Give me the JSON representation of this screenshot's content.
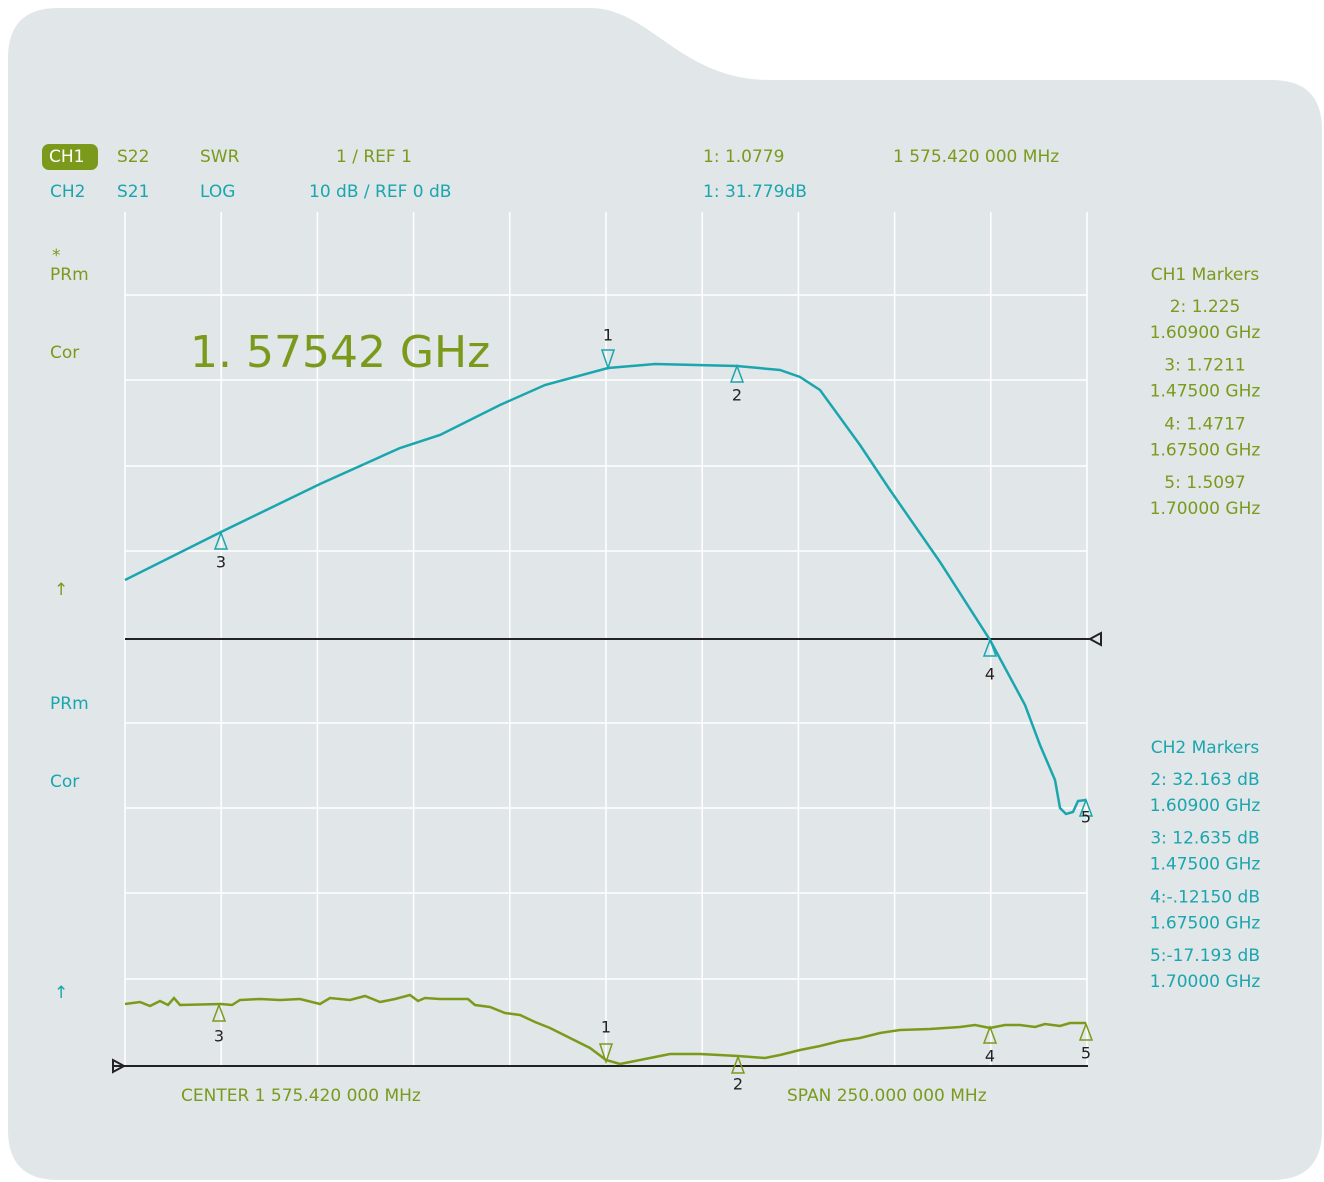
{
  "header": {
    "ch1": {
      "channel": "CH1",
      "param": "S22",
      "format": "SWR",
      "scale": "1   /  REF 1",
      "marker": "1: 1.0779",
      "frequency": "1 575.420 000 MHz"
    },
    "ch2": {
      "channel": "CH2",
      "param": "S21",
      "format": "LOG",
      "scale": "10  dB / REF  0  dB",
      "marker": "1: 31.779dB"
    }
  },
  "left_labels": {
    "ch1": {
      "star": "*",
      "prm": "PRm",
      "cor": "Cor",
      "arrow": "↑"
    },
    "ch2": {
      "prm": "PRm",
      "cor": "Cor",
      "arrow": "↑"
    }
  },
  "active_frequency": "1. 57542  GHz",
  "ch1_markers": {
    "title": "CH1 Markers",
    "items": [
      [
        "2: 1.225",
        "1.60900 GHz"
      ],
      [
        "3: 1.7211",
        "1.47500 GHz"
      ],
      [
        "4: 1.4717",
        "1.67500 GHz"
      ],
      [
        "5: 1.5097",
        "1.70000 GHz"
      ]
    ]
  },
  "ch2_markers": {
    "title": "CH2 Markers",
    "items": [
      [
        "2: 32.163 dB",
        "1.60900 GHz"
      ],
      [
        "3: 12.635 dB",
        "1.47500 GHz"
      ],
      [
        "4:-.12150 dB",
        "1.67500 GHz"
      ],
      [
        "5:-17.193 dB",
        "1.70000 GHz"
      ]
    ]
  },
  "trace_markers": {
    "ch1": [
      "1",
      "2",
      "3",
      "4",
      "5"
    ],
    "ch2": [
      "1",
      "2",
      "3",
      "4",
      "5"
    ]
  },
  "footer": {
    "center": "CENTER  1  575.420 000 MHz",
    "span": "SPAN 250.000 000 MHz"
  }
}
